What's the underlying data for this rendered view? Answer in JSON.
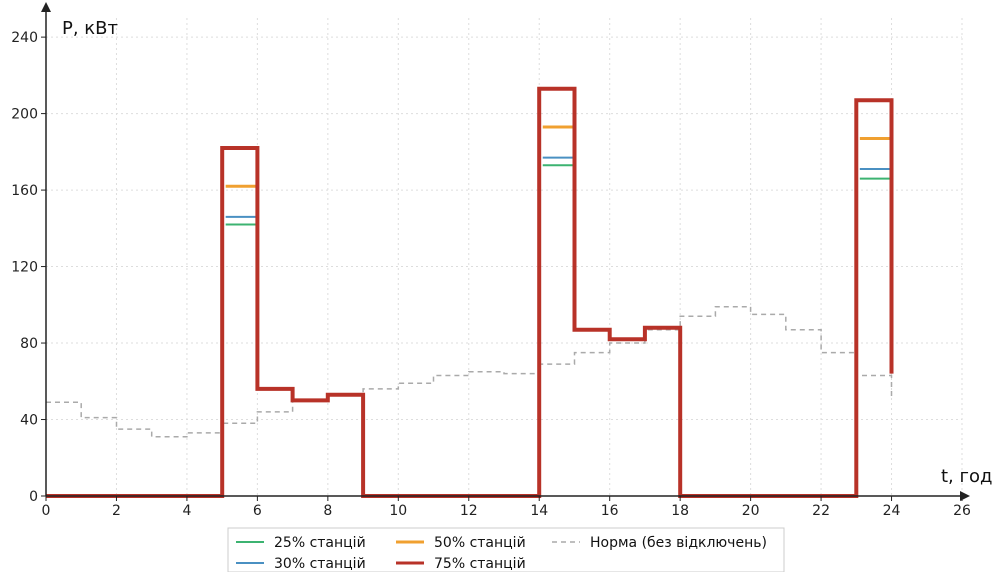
{
  "chart_data": {
    "type": "line",
    "step": true,
    "xlabel": "t, год",
    "ylabel": "P, кВт",
    "xlim": [
      0,
      26
    ],
    "ylim": [
      0,
      250
    ],
    "xticks": [
      0,
      2,
      4,
      6,
      8,
      10,
      12,
      14,
      16,
      18,
      20,
      22,
      24,
      26
    ],
    "yticks": [
      0,
      40,
      80,
      120,
      160,
      200,
      240
    ],
    "grid": true,
    "legend_position": "bottom",
    "series": [
      {
        "name": "25% станцій",
        "color": "#3cb371",
        "width": 2,
        "dash": "",
        "segments": [
          [
            5.1,
            6,
            142
          ],
          [
            14.1,
            15,
            173
          ],
          [
            23.1,
            24,
            166
          ]
        ]
      },
      {
        "name": "30% станцій",
        "color": "#4a90c2",
        "width": 2,
        "dash": "",
        "segments": [
          [
            5.1,
            6,
            146
          ],
          [
            14.1,
            15,
            177
          ],
          [
            23.1,
            24,
            171
          ]
        ]
      },
      {
        "name": "50% станцій",
        "color": "#f0a030",
        "width": 3,
        "dash": "",
        "segments": [
          [
            5.1,
            6,
            162
          ],
          [
            14.1,
            15,
            193
          ],
          [
            23.1,
            24,
            187
          ]
        ]
      },
      {
        "name": "75% станцій",
        "color": "#b83228",
        "width": 4,
        "dash": "",
        "path": [
          [
            0,
            0
          ],
          [
            5,
            0
          ],
          [
            5,
            182
          ],
          [
            6,
            182
          ],
          [
            6,
            56
          ],
          [
            7,
            56
          ],
          [
            7,
            50
          ],
          [
            8,
            50
          ],
          [
            8,
            53
          ],
          [
            9,
            53
          ],
          [
            9,
            0
          ],
          [
            14,
            0
          ],
          [
            14,
            213
          ],
          [
            15,
            213
          ],
          [
            15,
            87
          ],
          [
            16,
            87
          ],
          [
            16,
            82
          ],
          [
            17,
            82
          ],
          [
            17,
            88
          ],
          [
            18,
            88
          ],
          [
            18,
            0
          ],
          [
            23,
            0
          ],
          [
            23,
            207
          ],
          [
            24,
            207
          ],
          [
            24,
            64
          ]
        ]
      },
      {
        "name": "Норма (без відключень)",
        "color": "#aaaaaa",
        "width": 1.5,
        "dash": "5,4",
        "path": [
          [
            0,
            49
          ],
          [
            1,
            49
          ],
          [
            1,
            41
          ],
          [
            2,
            41
          ],
          [
            2,
            35
          ],
          [
            3,
            35
          ],
          [
            3,
            31
          ],
          [
            4,
            31
          ],
          [
            4,
            33
          ],
          [
            5,
            33
          ],
          [
            5,
            38
          ],
          [
            6,
            38
          ],
          [
            6,
            44
          ],
          [
            7,
            44
          ],
          [
            7,
            50
          ],
          [
            8,
            50
          ],
          [
            8,
            53
          ],
          [
            9,
            53
          ],
          [
            9,
            56
          ],
          [
            10,
            56
          ],
          [
            10,
            59
          ],
          [
            11,
            59
          ],
          [
            11,
            63
          ],
          [
            12,
            63
          ],
          [
            12,
            65
          ],
          [
            13,
            65
          ],
          [
            13,
            64
          ],
          [
            14,
            64
          ],
          [
            14,
            69
          ],
          [
            15,
            69
          ],
          [
            15,
            75
          ],
          [
            16,
            75
          ],
          [
            16,
            80
          ],
          [
            17,
            80
          ],
          [
            17,
            87
          ],
          [
            18,
            87
          ],
          [
            18,
            94
          ],
          [
            19,
            94
          ],
          [
            19,
            99
          ],
          [
            20,
            99
          ],
          [
            20,
            95
          ],
          [
            21,
            95
          ],
          [
            21,
            87
          ],
          [
            22,
            87
          ],
          [
            22,
            75
          ],
          [
            23,
            75
          ],
          [
            23,
            63
          ],
          [
            24,
            63
          ],
          [
            24,
            52
          ]
        ]
      }
    ]
  }
}
